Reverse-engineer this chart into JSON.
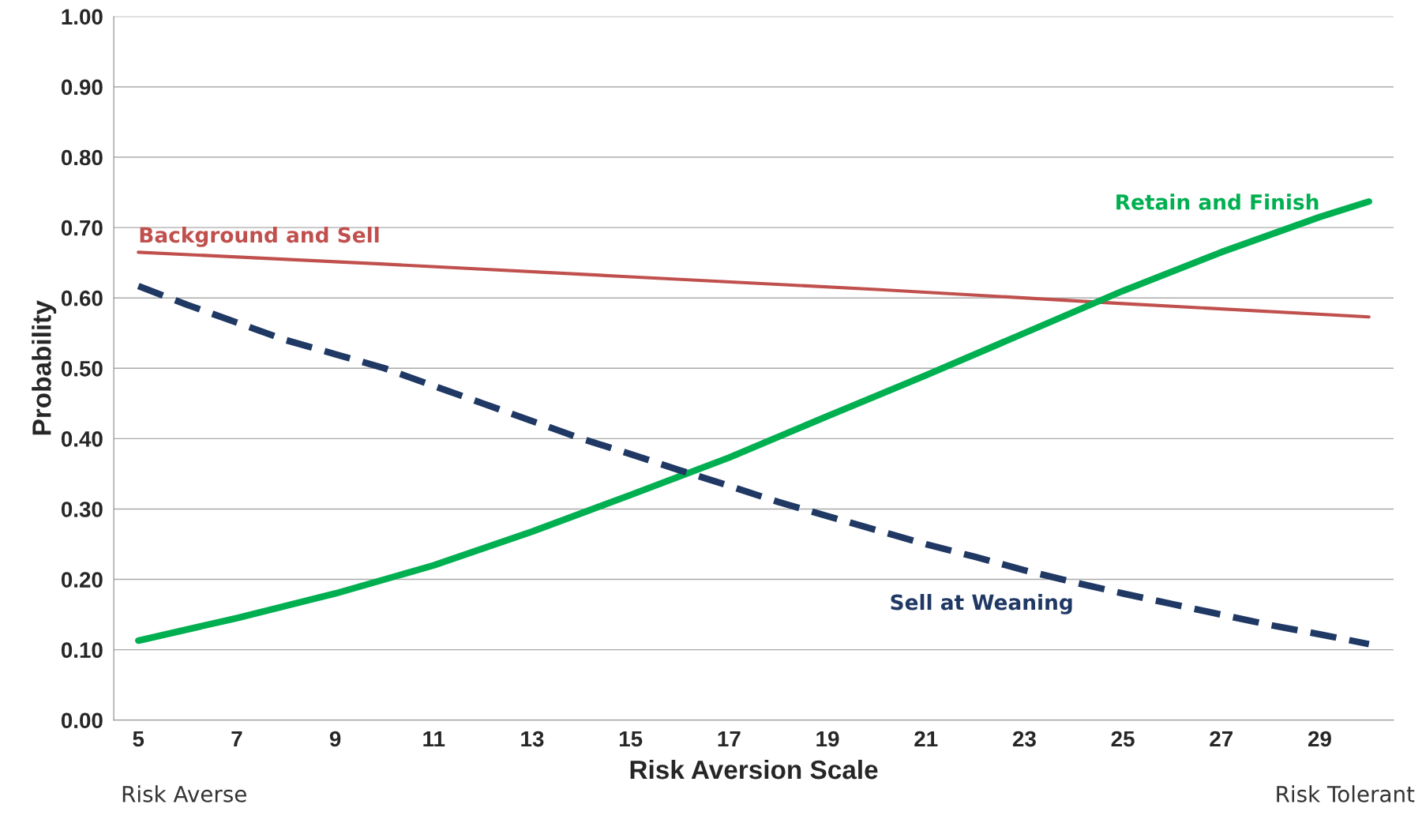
{
  "chart_data": {
    "type": "line",
    "xlabel": "Risk Aversion Scale",
    "ylabel": "Probability",
    "x": [
      5,
      6,
      7,
      8,
      9,
      10,
      11,
      12,
      13,
      14,
      15,
      16,
      17,
      18,
      19,
      20,
      21,
      22,
      23,
      24,
      25,
      26,
      27,
      28,
      29,
      30
    ],
    "xlim": [
      4.5,
      30.5
    ],
    "xticks": [
      5,
      7,
      9,
      11,
      13,
      15,
      17,
      19,
      21,
      23,
      25,
      27,
      29
    ],
    "ylim": [
      0,
      1
    ],
    "yticks": [
      {
        "value": 0,
        "label": "0.00"
      },
      {
        "value": 0.1,
        "label": "0.10"
      },
      {
        "value": 0.2,
        "label": "0.20"
      },
      {
        "value": 0.3,
        "label": "0.30"
      },
      {
        "value": 0.4,
        "label": "0.40"
      },
      {
        "value": 0.5,
        "label": "0.50"
      },
      {
        "value": 0.6,
        "label": "0.60"
      },
      {
        "value": 0.7,
        "label": "0.70"
      },
      {
        "value": 0.8,
        "label": "0.80"
      },
      {
        "value": 0.9,
        "label": "0.90"
      },
      {
        "value": 1,
        "label": "1.00"
      }
    ],
    "grid": "y",
    "legend": false,
    "marker": "none",
    "series": [
      {
        "name": "Background and Sell",
        "color": "#c0504d",
        "line_style": "solid",
        "x": [
          5,
          10,
          15,
          20,
          25,
          30
        ],
        "values": [
          0.665,
          0.648,
          0.63,
          0.612,
          0.592,
          0.573
        ]
      },
      {
        "name": "Retain and Finish",
        "color": "#00b050",
        "line_style": "solid",
        "x": [
          5,
          7,
          9,
          11,
          13,
          15,
          17,
          19,
          21,
          23,
          25,
          27,
          29,
          30
        ],
        "values": [
          0.113,
          0.145,
          0.18,
          0.22,
          0.268,
          0.32,
          0.373,
          0.432,
          0.49,
          0.55,
          0.61,
          0.665,
          0.715,
          0.737
        ]
      },
      {
        "name": "Sell at Weaning",
        "color": "#1f3864",
        "line_style": "dashed",
        "values": [
          0.617,
          0.59,
          0.565,
          0.54,
          0.52,
          0.5,
          0.475,
          0.45,
          0.425,
          0.4,
          0.378,
          0.355,
          0.333,
          0.31,
          0.29,
          0.27,
          0.25,
          0.232,
          0.213,
          0.196,
          0.18,
          0.165,
          0.15,
          0.135,
          0.122,
          0.108
        ]
      }
    ],
    "annotations": [
      "Risk Averse",
      "Risk Tolerant"
    ]
  }
}
